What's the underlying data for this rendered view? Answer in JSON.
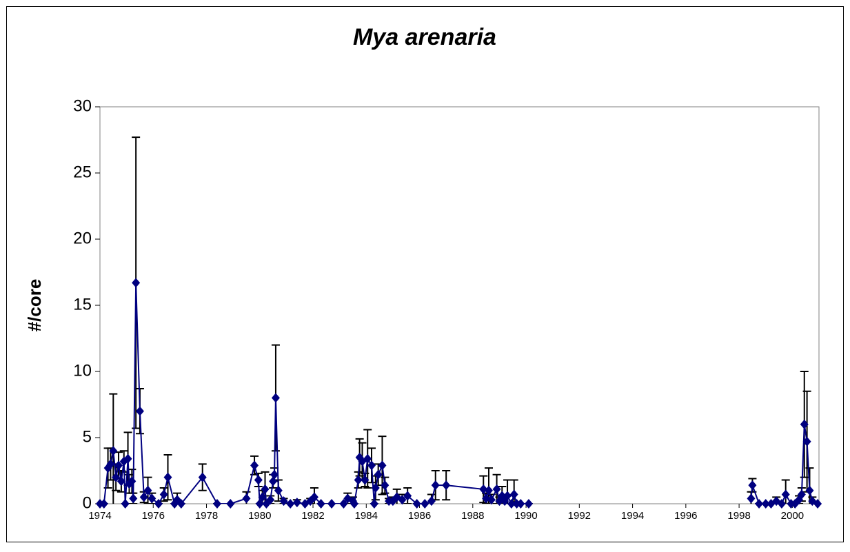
{
  "chart_data": {
    "type": "line",
    "title": "Mya arenaria",
    "y_label": "#/core",
    "x": [
      1974.0,
      1974.15,
      1974.3,
      1974.4,
      1974.5,
      1974.6,
      1974.7,
      1974.8,
      1974.9,
      1974.95,
      1975.05,
      1975.1,
      1975.2,
      1975.25,
      1975.35,
      1975.5,
      1975.65,
      1975.8,
      1975.95,
      1976.2,
      1976.4,
      1976.55,
      1976.8,
      1976.9,
      1977.05,
      1977.85,
      1978.4,
      1978.9,
      1979.5,
      1979.8,
      1979.95,
      1980.0,
      1980.1,
      1980.2,
      1980.25,
      1980.4,
      1980.5,
      1980.55,
      1980.6,
      1980.7,
      1980.9,
      1981.15,
      1981.4,
      1981.7,
      1981.9,
      1982.05,
      1982.3,
      1982.7,
      1983.15,
      1983.3,
      1983.5,
      1983.55,
      1983.7,
      1983.75,
      1983.85,
      1983.95,
      1984.05,
      1984.2,
      1984.3,
      1984.35,
      1984.45,
      1984.6,
      1984.7,
      1984.85,
      1985.0,
      1985.15,
      1985.35,
      1985.55,
      1985.9,
      1986.2,
      1986.45,
      1986.6,
      1987.0,
      1988.4,
      1988.5,
      1988.6,
      1988.7,
      1988.9,
      1989.0,
      1989.1,
      1989.2,
      1989.3,
      1989.45,
      1989.55,
      1989.65,
      1989.8,
      1990.1,
      null,
      1998.45,
      1998.5,
      1998.75,
      1999.0,
      1999.2,
      1999.4,
      1999.6,
      1999.75,
      1999.95,
      2000.1,
      2000.25,
      2000.35,
      2000.45,
      2000.55,
      2000.65,
      2000.75,
      2000.95
    ],
    "series": [
      {
        "color": "#000080",
        "error_color": "#000000",
        "values": [
          0,
          0,
          2.7,
          3.0,
          4.0,
          2.0,
          2.9,
          1.7,
          3.2,
          0,
          3.4,
          1.5,
          1.7,
          0.4,
          16.7,
          7.0,
          0.5,
          1.0,
          0.4,
          0,
          0.7,
          2.0,
          0,
          0.3,
          0,
          2.0,
          0,
          0,
          0.4,
          2.9,
          1.8,
          0,
          0.5,
          1.1,
          0,
          0.3,
          1.7,
          2.2,
          8.0,
          1.0,
          0.2,
          0,
          0.1,
          0,
          0.2,
          0.5,
          0,
          0,
          0,
          0.4,
          0.2,
          0,
          1.8,
          3.5,
          3.2,
          1.8,
          3.4,
          2.9,
          0,
          1.2,
          2.2,
          2.9,
          1.4,
          0.2,
          0.2,
          0.5,
          0.3,
          0.6,
          0,
          0,
          0.2,
          1.4,
          1.4,
          1.1,
          0.4,
          1.0,
          0.3,
          1.1,
          0.2,
          0.6,
          0.2,
          0.6,
          0,
          0.7,
          0,
          0,
          0,
          null,
          0.4,
          1.4,
          0,
          0,
          0,
          0.2,
          0,
          0.7,
          0,
          0,
          0.3,
          0.7,
          6.0,
          4.7,
          1.0,
          0.2,
          0
        ],
        "errors": [
          0,
          0,
          1.5,
          1.2,
          4.3,
          1.0,
          1.0,
          0.8,
          0.8,
          0,
          2.0,
          0.7,
          0.9,
          0.4,
          11.0,
          1.7,
          0.4,
          1.0,
          0.4,
          0,
          0.5,
          1.7,
          0,
          0.5,
          0,
          1.0,
          0,
          0,
          0.5,
          0.7,
          0.5,
          0,
          0.5,
          1.3,
          0,
          0.3,
          0.5,
          0.5,
          4.0,
          0.8,
          0.2,
          0,
          0.2,
          0,
          0.2,
          0.7,
          0,
          0,
          0,
          0.4,
          0.3,
          0,
          0.6,
          1.4,
          1.4,
          0.5,
          2.2,
          1.3,
          0,
          0.9,
          0.8,
          2.2,
          0.6,
          0.2,
          0.3,
          0.6,
          0.4,
          0.6,
          0,
          0,
          0.5,
          1.1,
          1.1,
          1.0,
          0.4,
          1.7,
          0.4,
          1.1,
          0.3,
          0.7,
          0.4,
          1.2,
          0,
          1.1,
          0,
          0,
          0,
          null,
          0.5,
          0.5,
          0,
          0,
          0,
          0.3,
          0,
          1.1,
          0,
          0,
          0.3,
          0.5,
          4.0,
          3.8,
          1.7,
          0.3,
          0
        ]
      }
    ],
    "xlim": [
      1974,
      2001
    ],
    "xticks": [
      1974,
      1976,
      1978,
      1980,
      1982,
      1984,
      1986,
      1988,
      1990,
      1992,
      1994,
      1996,
      1998,
      2000
    ],
    "ylim": [
      0,
      30
    ],
    "yticks": [
      0,
      5,
      10,
      15,
      20,
      25,
      30
    ],
    "grid": false
  }
}
